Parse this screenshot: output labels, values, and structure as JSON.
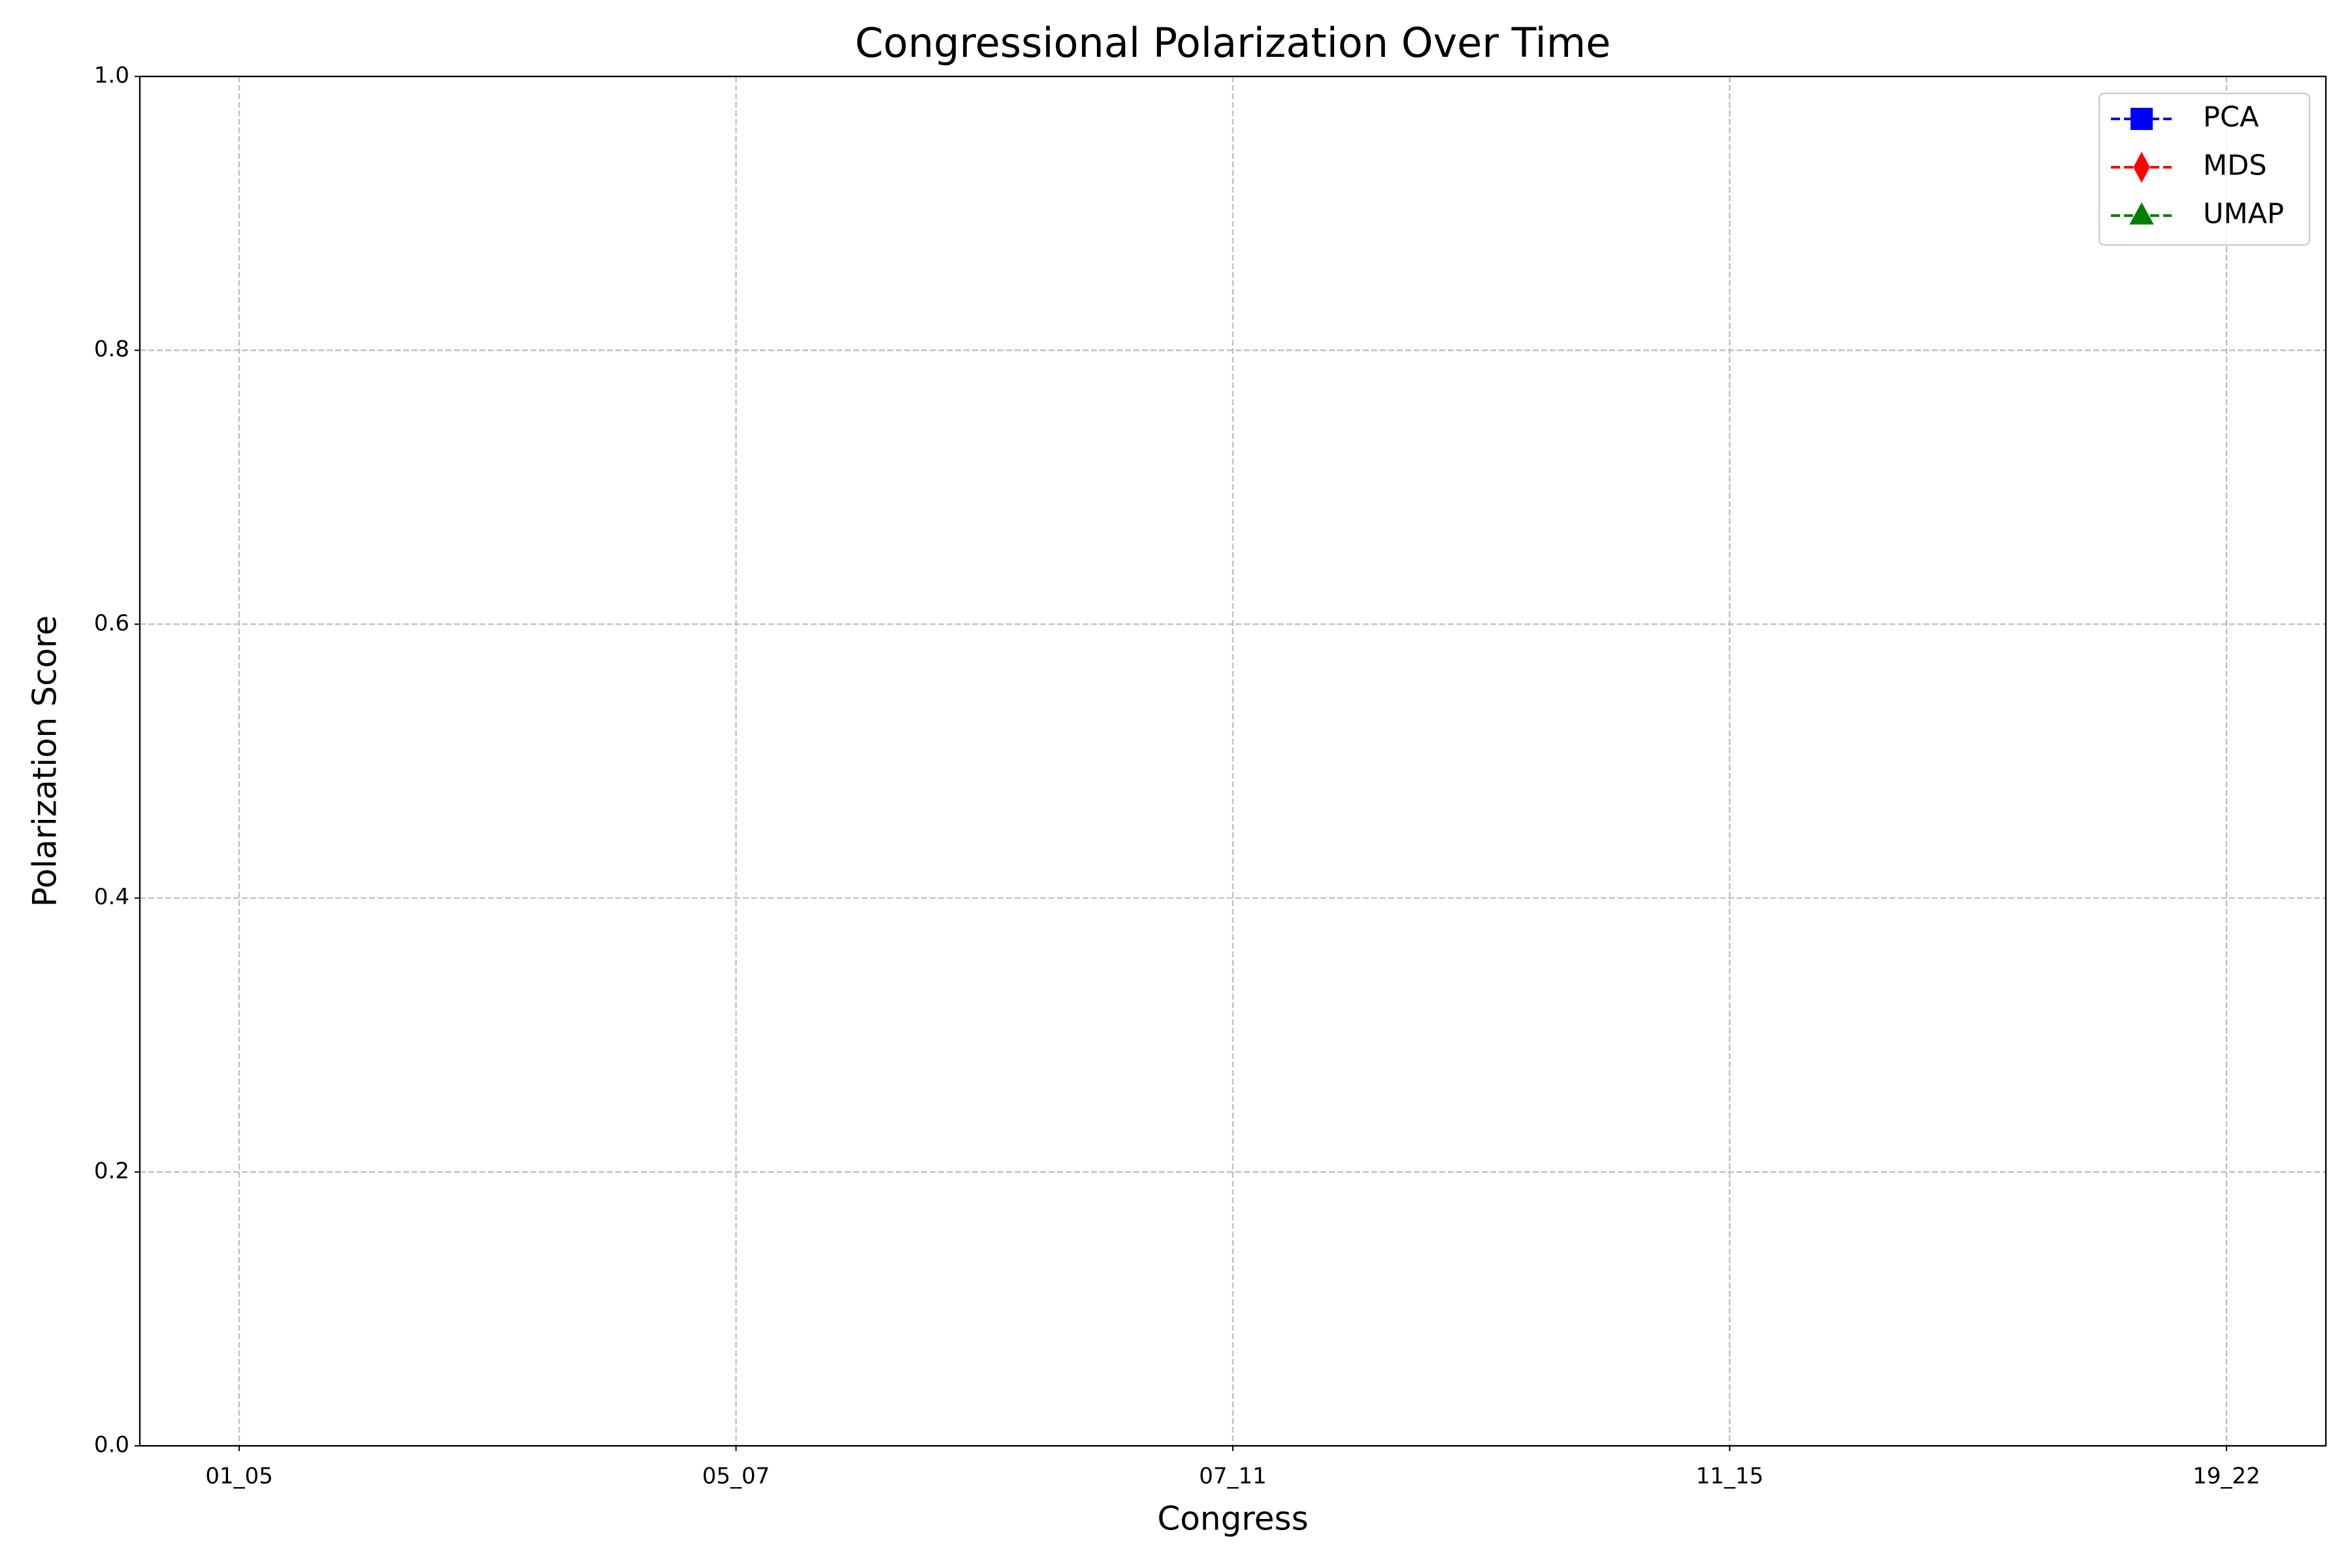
{
  "chart_data": {
    "type": "line",
    "title": "Congressional Polarization Over Time",
    "x_label": "Congress",
    "y_label": "Polarization Score",
    "categories": [
      "01_05",
      "05_07",
      "07_11",
      "11_15",
      "19_22"
    ],
    "series": [
      {
        "name": "PCA",
        "color": "#0000ff",
        "marker": "square",
        "linestyle": "dashed",
        "values": [
          null,
          null,
          null,
          null,
          null
        ]
      },
      {
        "name": "MDS",
        "color": "#ff0000",
        "marker": "diamond",
        "linestyle": "dashed",
        "values": [
          null,
          null,
          null,
          null,
          null
        ]
      },
      {
        "name": "UMAP",
        "color": "#008000",
        "marker": "triangle",
        "linestyle": "dashed",
        "values": [
          null,
          null,
          null,
          null,
          null
        ]
      }
    ],
    "ylim": [
      0,
      1
    ],
    "yticks": [
      {
        "value": 0,
        "label": "0.0"
      },
      0.2,
      0.4,
      0.6,
      0.8,
      {
        "value": 1,
        "label": "1.0"
      }
    ],
    "grid": true,
    "legend": "upper right"
  }
}
